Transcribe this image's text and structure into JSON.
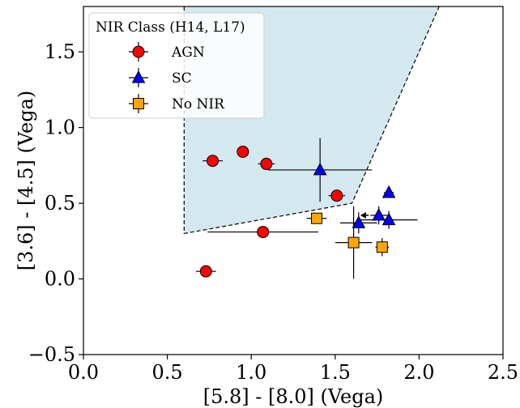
{
  "chart_data": {
    "type": "scatter",
    "xlabel": "[5.8] - [8.0] (Vega)",
    "ylabel": "[3.6] - [4.5] (Vega)",
    "xlim": [
      0.0,
      2.5
    ],
    "ylim": [
      -0.5,
      1.8
    ],
    "xticks": [
      0.0,
      0.5,
      1.0,
      1.5,
      2.0,
      2.5
    ],
    "yticks": [
      -0.5,
      0.0,
      0.5,
      1.0,
      1.5
    ],
    "xtick_labels": [
      "0.0",
      "0.5",
      "1.0",
      "1.5",
      "2.0",
      "2.5"
    ],
    "ytick_labels": [
      "−0.5",
      "0.0",
      "0.5",
      "1.0",
      "1.5"
    ],
    "grid": false,
    "legend": {
      "title": "NIR Class (H14, L17)",
      "position": "top-left",
      "entries": [
        "AGN",
        "SC",
        "No NIR"
      ]
    },
    "region": {
      "fill": "#d3e9ef",
      "stroke": "dashed",
      "vertices": [
        [
          0.6,
          1.8
        ],
        [
          0.6,
          0.3
        ],
        [
          1.6,
          0.5
        ],
        [
          2.12,
          1.8
        ]
      ]
    },
    "series": [
      {
        "name": "AGN",
        "marker": "circle",
        "color": "#ff0000",
        "points": [
          {
            "x": 0.73,
            "y": 0.05,
            "xerr": 0.06,
            "yerr": 0
          },
          {
            "x": 0.77,
            "y": 0.78,
            "xerr": 0.06,
            "yerr": 0
          },
          {
            "x": 0.95,
            "y": 0.84,
            "xerr": 0,
            "yerr": 0
          },
          {
            "x": 1.07,
            "y": 0.31,
            "xerr": 0.33,
            "yerr": 0
          },
          {
            "x": 1.09,
            "y": 0.76,
            "xerr": 0.05,
            "yerr": 0.04
          },
          {
            "x": 1.51,
            "y": 0.55,
            "xerr": 0.05,
            "yerr": 0
          }
        ]
      },
      {
        "name": "SC",
        "marker": "triangle",
        "color": "#0000ff",
        "points": [
          {
            "x": 1.41,
            "y": 0.72,
            "xerr": 0.31,
            "yerr": 0.21
          },
          {
            "x": 1.64,
            "y": 0.37,
            "xerr": 0.11,
            "yerr": 0.07
          },
          {
            "x": 1.76,
            "y": 0.42,
            "xerr": 0.05,
            "yerr": 0.06
          },
          {
            "x": 1.82,
            "y": 0.57,
            "xerr": 0.03,
            "yerr": 0.03
          },
          {
            "x": 1.82,
            "y": 0.39,
            "xerr": 0.17,
            "yerr": 0.06
          }
        ]
      },
      {
        "name": "No NIR",
        "marker": "square",
        "color": "#ffa500",
        "points": [
          {
            "x": 1.39,
            "y": 0.4,
            "xerr": 0.06,
            "yerr": 0
          },
          {
            "x": 1.61,
            "y": 0.24,
            "xerr": 0.11,
            "yerr": 0.24
          },
          {
            "x": 1.78,
            "y": 0.21,
            "xerr": 0.04,
            "yerr": 0.06
          }
        ]
      }
    ],
    "annotations": [
      {
        "type": "upper-limit-arrow",
        "direction": "left",
        "x": 1.7,
        "y": 0.42,
        "to_x": 1.65
      }
    ]
  }
}
